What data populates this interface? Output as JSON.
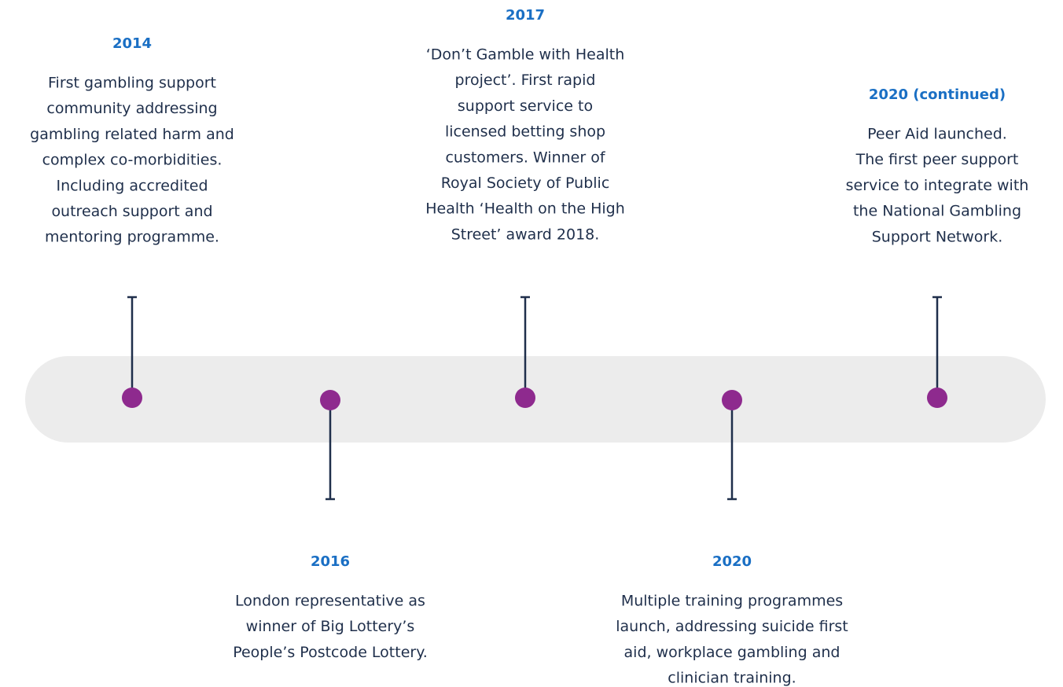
{
  "timeline": {
    "above": [
      {
        "year": "2014",
        "lines": [
          "First gambling support",
          "community addressing",
          "gambling related harm and",
          "complex co-morbidities.",
          "Including accredited",
          "outreach support and",
          "mentoring programme."
        ]
      },
      {
        "year": "2017",
        "lines": [
          "‘Don’t Gamble with Health",
          "project’. First rapid",
          "support service to",
          "licensed betting shop",
          "customers. Winner of",
          "Royal Society of Public",
          "Health ‘Health on the High",
          "Street’ award 2018."
        ]
      },
      {
        "year": "2020 (continued)",
        "lines": [
          "Peer Aid launched.",
          "The first peer support",
          "service to integrate with",
          "the National Gambling",
          "Support Network."
        ]
      }
    ],
    "below": [
      {
        "year": "2016",
        "lines": [
          "London representative as",
          "winner of Big Lottery’s",
          "People’s Postcode Lottery."
        ]
      },
      {
        "year": "2020",
        "lines": [
          "Multiple training programmes",
          "launch, addressing suicide first",
          "aid, workplace gambling and",
          "clinician training."
        ]
      }
    ]
  }
}
